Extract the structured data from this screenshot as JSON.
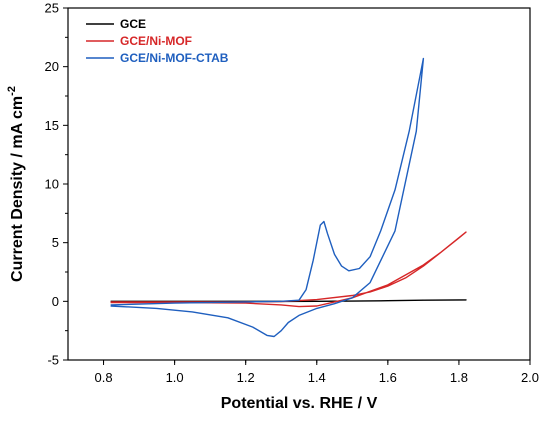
{
  "chart_data": {
    "type": "line",
    "xlabel": "Potential vs. RHE / V",
    "ylabel": "Current Density / mA cm",
    "ylabel_superscript": "-2",
    "xlim": [
      0.7,
      2.0
    ],
    "ylim": [
      -5,
      25
    ],
    "xticks": [
      "0.8",
      "1.0",
      "1.2",
      "1.4",
      "1.6",
      "1.8",
      "2.0"
    ],
    "yticks": [
      "-5",
      "0",
      "5",
      "10",
      "15",
      "20",
      "25"
    ],
    "grid": false,
    "legend_position": "top-left",
    "series": [
      {
        "name": "GCE",
        "color": "#000000",
        "x": [
          0.82,
          1.0,
          1.2,
          1.4,
          1.5,
          1.6,
          1.7,
          1.8,
          1.82,
          1.7,
          1.6,
          1.5,
          1.4,
          1.2,
          1.0,
          0.82
        ],
        "y": [
          0.0,
          0.0,
          0.0,
          0.0,
          0.02,
          0.05,
          0.1,
          0.12,
          0.12,
          0.1,
          0.05,
          0.02,
          0.0,
          -0.02,
          -0.03,
          -0.05
        ]
      },
      {
        "name": "GCE/Ni-MOF",
        "color": "#d62728",
        "x": [
          0.82,
          1.0,
          1.2,
          1.3,
          1.4,
          1.5,
          1.55,
          1.6,
          1.65,
          1.7,
          1.75,
          1.8,
          1.82,
          1.75,
          1.7,
          1.6,
          1.5,
          1.45,
          1.4,
          1.35,
          1.3,
          1.2,
          1.0,
          0.82
        ],
        "y": [
          -0.05,
          -0.05,
          -0.05,
          -0.02,
          0.15,
          0.5,
          0.8,
          1.3,
          2.0,
          3.0,
          4.2,
          5.4,
          5.9,
          4.2,
          3.1,
          1.4,
          0.3,
          -0.05,
          -0.4,
          -0.45,
          -0.3,
          -0.15,
          -0.1,
          -0.1
        ]
      },
      {
        "name": "GCE/Ni-MOF-CTAB",
        "color": "#1f5fbf",
        "x": [
          0.82,
          1.0,
          1.2,
          1.3,
          1.35,
          1.37,
          1.39,
          1.41,
          1.42,
          1.43,
          1.45,
          1.47,
          1.49,
          1.52,
          1.55,
          1.58,
          1.62,
          1.66,
          1.7,
          1.68,
          1.62,
          1.55,
          1.5,
          1.45,
          1.4,
          1.35,
          1.32,
          1.3,
          1.28,
          1.26,
          1.22,
          1.15,
          1.05,
          0.95,
          0.82
        ],
        "y": [
          -0.3,
          -0.15,
          -0.05,
          0.0,
          0.1,
          1.0,
          3.5,
          6.5,
          6.8,
          5.8,
          4.0,
          3.0,
          2.6,
          2.8,
          3.8,
          6.0,
          9.5,
          14.5,
          20.7,
          14.5,
          6.0,
          1.6,
          0.3,
          -0.2,
          -0.6,
          -1.2,
          -1.8,
          -2.5,
          -3.0,
          -2.9,
          -2.2,
          -1.4,
          -0.9,
          -0.6,
          -0.4
        ]
      }
    ]
  }
}
